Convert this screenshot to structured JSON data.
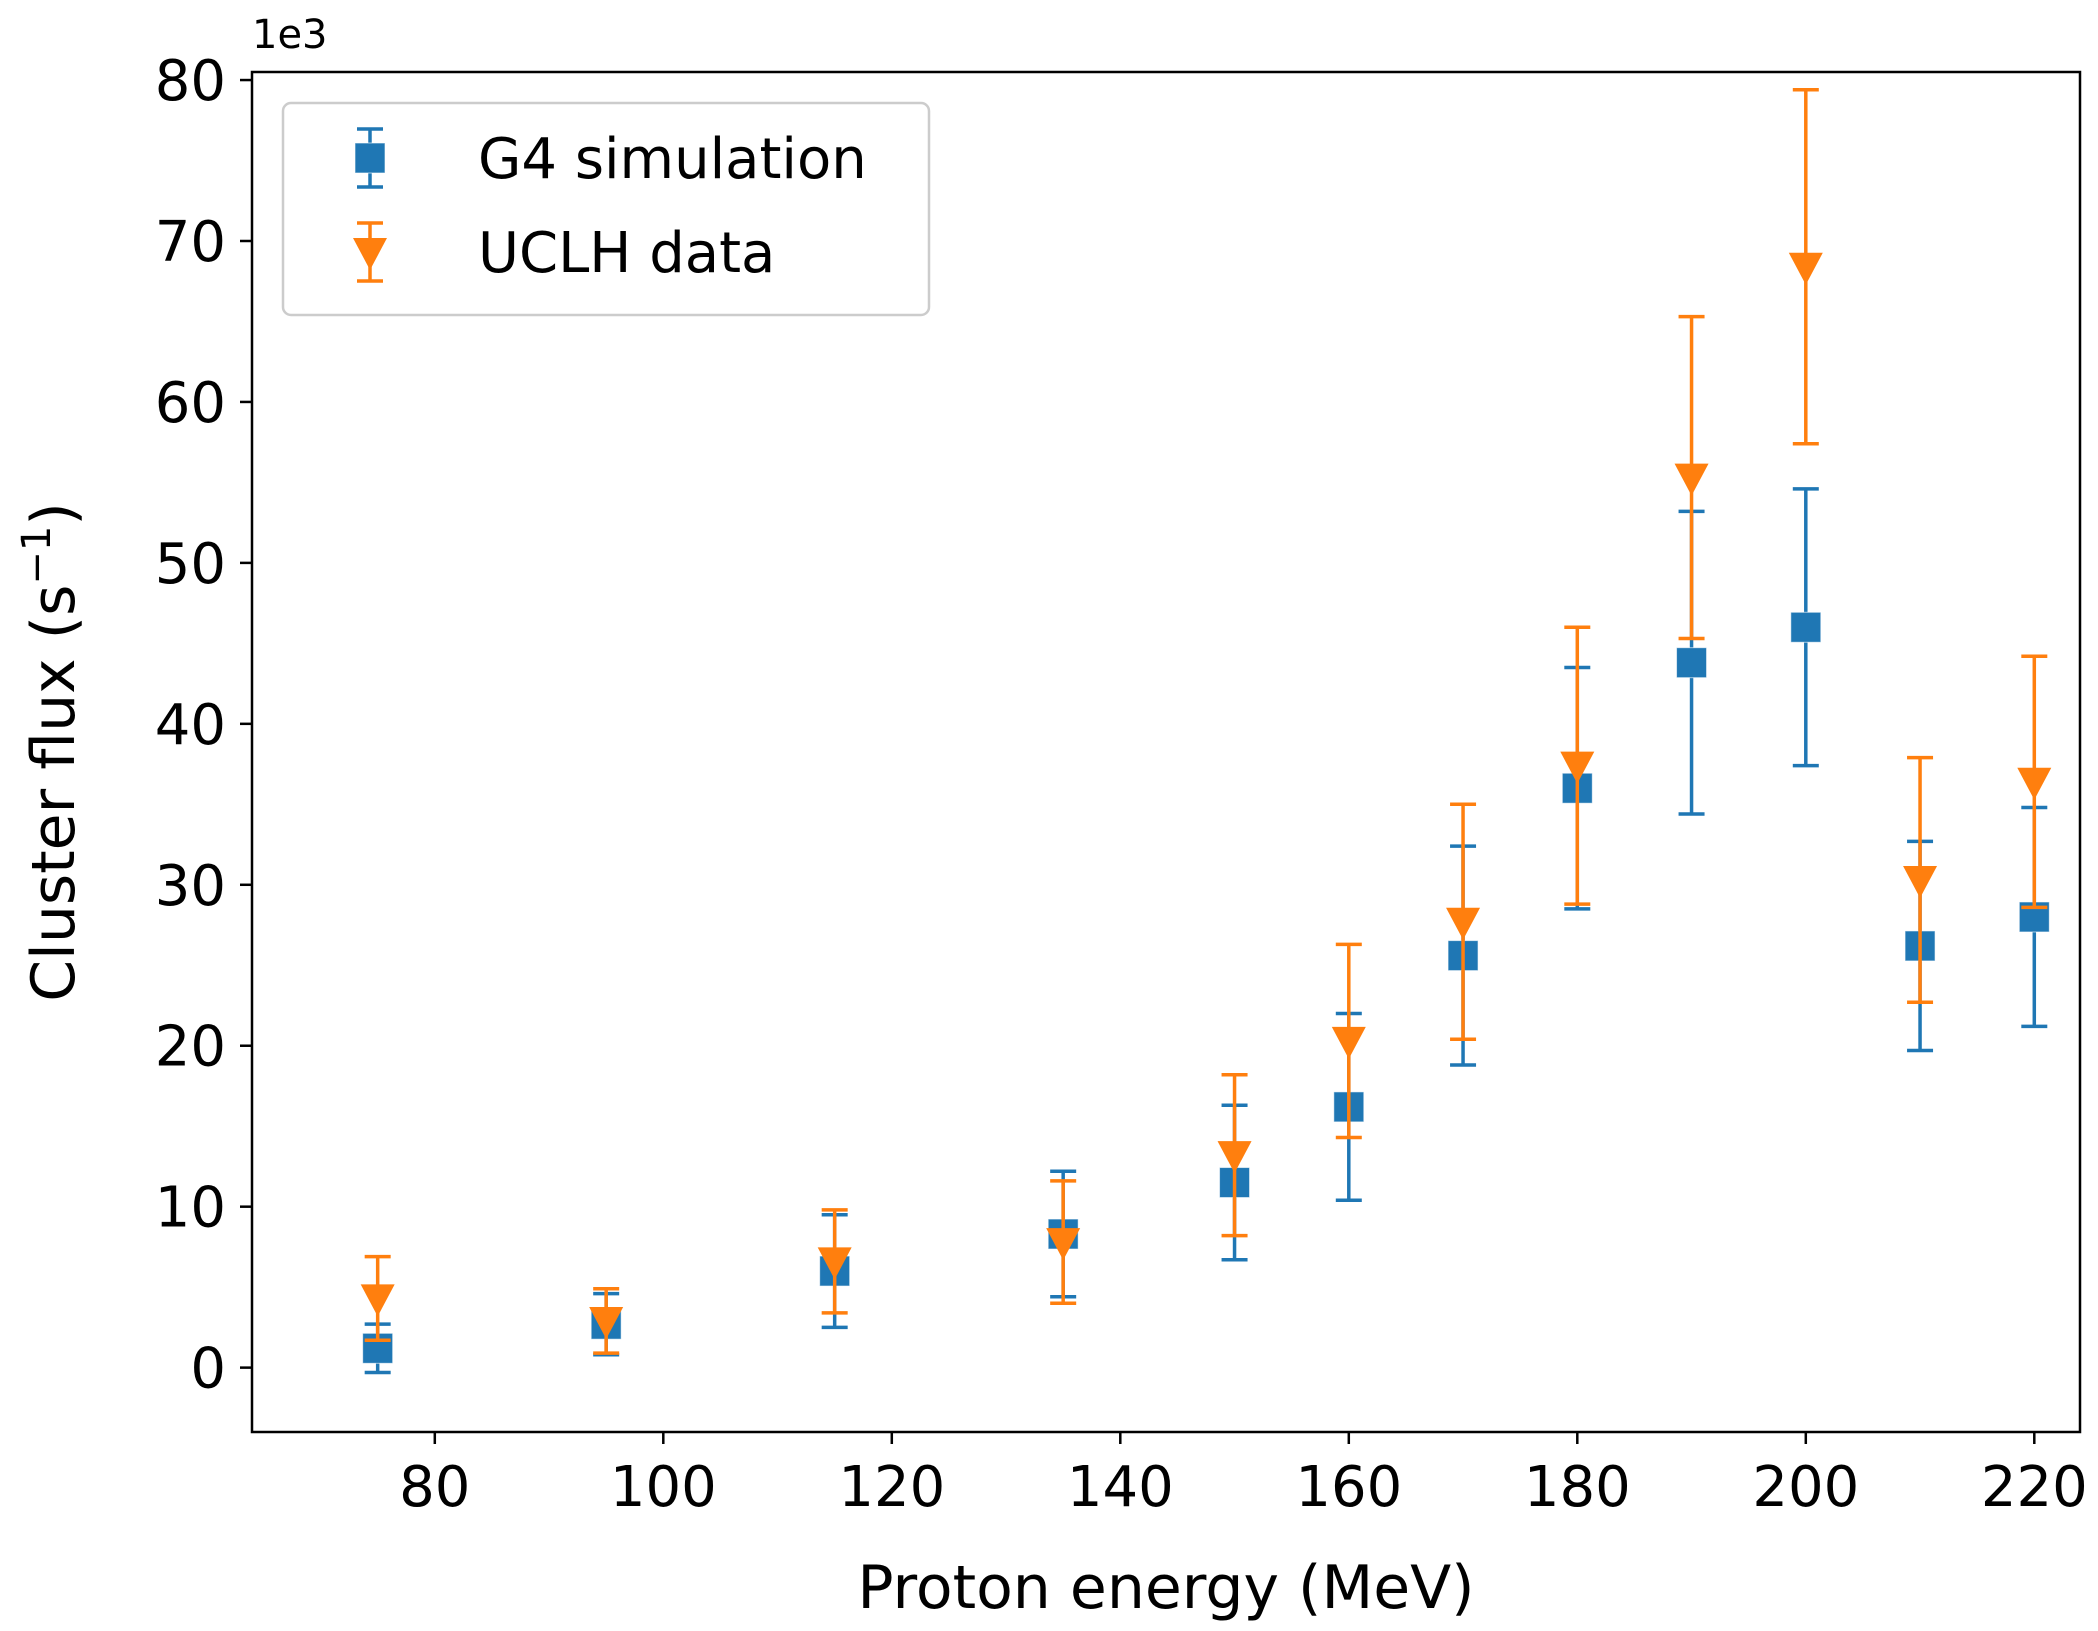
{
  "chart_data": {
    "type": "scatter",
    "xlabel": "Proton energy (MeV)",
    "ylabel": "Cluster flux (s",
    "ylabel_sup": "−1",
    "ylabel_close": ")",
    "y_offset_label": "1e3",
    "xlim": [
      64,
      224
    ],
    "ylim": [
      -4,
      80.5
    ],
    "x_ticks": [
      80,
      100,
      120,
      140,
      160,
      180,
      200,
      220
    ],
    "y_ticks": [
      0,
      10,
      20,
      30,
      40,
      50,
      60,
      70,
      80
    ],
    "legend_position": "top-left",
    "series": [
      {
        "name": "G4 simulation",
        "color": "#1f77b4",
        "marker": "square",
        "points": [
          {
            "x": 75,
            "y": 1.2,
            "err_low": 1.5,
            "err_high": 1.5
          },
          {
            "x": 95,
            "y": 2.7,
            "err_low": 1.9,
            "err_high": 1.9
          },
          {
            "x": 115,
            "y": 6.0,
            "err_low": 3.5,
            "err_high": 3.5
          },
          {
            "x": 135,
            "y": 8.3,
            "err_low": 3.9,
            "err_high": 3.9
          },
          {
            "x": 150,
            "y": 11.5,
            "err_low": 4.8,
            "err_high": 4.8
          },
          {
            "x": 160,
            "y": 16.2,
            "err_low": 5.8,
            "err_high": 5.8
          },
          {
            "x": 170,
            "y": 25.6,
            "err_low": 6.8,
            "err_high": 6.8
          },
          {
            "x": 180,
            "y": 36.0,
            "err_low": 7.5,
            "err_high": 7.5
          },
          {
            "x": 190,
            "y": 43.8,
            "err_low": 9.4,
            "err_high": 9.4
          },
          {
            "x": 200,
            "y": 46.0,
            "err_low": 8.6,
            "err_high": 8.6
          },
          {
            "x": 210,
            "y": 26.2,
            "err_low": 6.5,
            "err_high": 6.5
          },
          {
            "x": 220,
            "y": 28.0,
            "err_low": 6.8,
            "err_high": 6.8
          }
        ]
      },
      {
        "name": "UCLH data",
        "color": "#ff7f0e",
        "marker": "triangle-down",
        "points": [
          {
            "x": 75,
            "y": 4.3,
            "err_low": 2.6,
            "err_high": 2.6
          },
          {
            "x": 95,
            "y": 2.9,
            "err_low": 2.0,
            "err_high": 2.0
          },
          {
            "x": 115,
            "y": 6.6,
            "err_low": 3.2,
            "err_high": 3.2
          },
          {
            "x": 135,
            "y": 7.8,
            "err_low": 3.8,
            "err_high": 3.8
          },
          {
            "x": 150,
            "y": 13.2,
            "err_low": 5.0,
            "err_high": 5.0
          },
          {
            "x": 160,
            "y": 20.3,
            "err_low": 6.0,
            "err_high": 6.0
          },
          {
            "x": 170,
            "y": 27.7,
            "err_low": 7.3,
            "err_high": 7.3
          },
          {
            "x": 180,
            "y": 37.4,
            "err_low": 8.6,
            "err_high": 8.6
          },
          {
            "x": 190,
            "y": 55.3,
            "err_low": 10.0,
            "err_high": 10.0
          },
          {
            "x": 200,
            "y": 68.4,
            "err_low": 11.0,
            "err_high": 11.0
          },
          {
            "x": 210,
            "y": 30.3,
            "err_low": 7.6,
            "err_high": 7.6
          },
          {
            "x": 220,
            "y": 36.4,
            "err_low": 7.8,
            "err_high": 7.8
          }
        ]
      }
    ]
  }
}
